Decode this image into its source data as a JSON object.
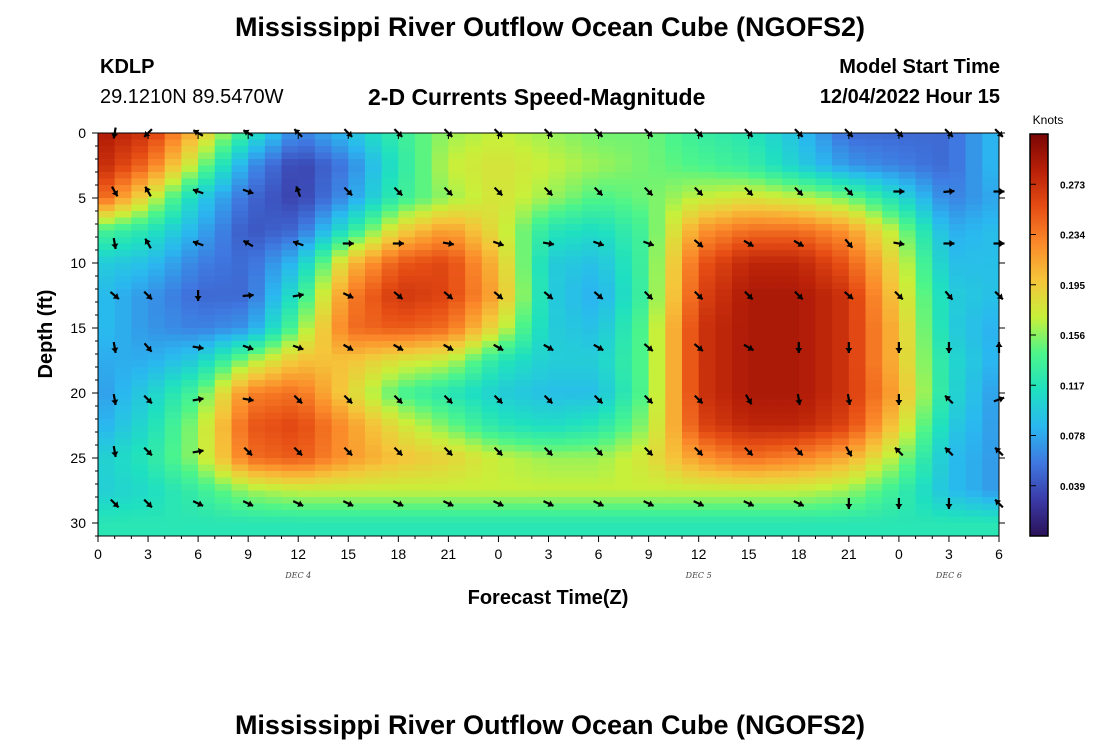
{
  "header": {
    "title": "Mississippi River Outflow Ocean Cube (NGOFS2)",
    "station": "KDLP",
    "coordinates": "29.1210N  89.5470W",
    "subtitle": "2-D Currents Speed-Magnitude",
    "model_start_label": "Model Start Time",
    "model_start_value": "12/04/2022 Hour 15"
  },
  "footer": {
    "title_repeat": "Mississippi River Outflow Ocean Cube (NGOFS2)"
  },
  "chart_data": {
    "type": "heatmap",
    "title": "2-D Currents Speed-Magnitude",
    "xlabel": "Forecast Time(Z)",
    "ylabel": "Depth (ft)",
    "x_ticks": [
      "0",
      "3",
      "6",
      "9",
      "12",
      "15",
      "18",
      "21",
      "0",
      "3",
      "6",
      "9",
      "12",
      "15",
      "18",
      "21",
      "0",
      "3",
      "6"
    ],
    "x_hours_elapsed": [
      0,
      3,
      6,
      9,
      12,
      15,
      18,
      21,
      24,
      27,
      30,
      33,
      36,
      39,
      42,
      45,
      48,
      51,
      54
    ],
    "xlim": [
      0,
      54
    ],
    "day_labels": [
      {
        "label": "DEC 4",
        "hour": 12
      },
      {
        "label": "DEC 5",
        "hour": 36
      },
      {
        "label": "DEC 6",
        "hour": 51
      }
    ],
    "y_ticks": [
      0,
      5,
      10,
      15,
      20,
      25,
      30
    ],
    "ylim": [
      0,
      31
    ],
    "y_inverted": true,
    "colorbar": {
      "unit": "Knots",
      "ticks": [
        0.039,
        0.078,
        0.117,
        0.156,
        0.195,
        0.234,
        0.273
      ],
      "range": [
        0,
        0.312
      ],
      "colors": [
        "#2a1158",
        "#3b3ba8",
        "#3f78e0",
        "#2ab8f0",
        "#1fe0c0",
        "#4df58a",
        "#c8f03a",
        "#f5c53a",
        "#fb8a2a",
        "#e64d14",
        "#b82008",
        "#7a0604"
      ]
    },
    "speed_grid": {
      "depths_ft": [
        0,
        2.5,
        5,
        7.5,
        10,
        12.5,
        15,
        17.5,
        20,
        22.5,
        25,
        27.5,
        30
      ],
      "hours": [
        0,
        3,
        6,
        9,
        12,
        15,
        18,
        21,
        24,
        27,
        30,
        33,
        36,
        39,
        42,
        45,
        48,
        51,
        54
      ],
      "values_knots": [
        [
          0.29,
          0.27,
          0.2,
          0.12,
          0.06,
          0.09,
          0.13,
          0.16,
          0.17,
          0.16,
          0.15,
          0.15,
          0.13,
          0.12,
          0.09,
          0.05,
          0.05,
          0.05,
          0.09
        ],
        [
          0.28,
          0.24,
          0.16,
          0.07,
          0.03,
          0.06,
          0.12,
          0.17,
          0.18,
          0.17,
          0.16,
          0.15,
          0.14,
          0.13,
          0.1,
          0.07,
          0.06,
          0.05,
          0.09
        ],
        [
          0.25,
          0.18,
          0.1,
          0.05,
          0.03,
          0.07,
          0.13,
          0.16,
          0.18,
          0.16,
          0.14,
          0.15,
          0.17,
          0.18,
          0.17,
          0.15,
          0.11,
          0.06,
          0.08
        ],
        [
          0.14,
          0.12,
          0.08,
          0.04,
          0.05,
          0.12,
          0.19,
          0.22,
          0.18,
          0.12,
          0.11,
          0.14,
          0.22,
          0.24,
          0.24,
          0.22,
          0.16,
          0.08,
          0.09
        ],
        [
          0.1,
          0.09,
          0.06,
          0.05,
          0.09,
          0.2,
          0.25,
          0.26,
          0.2,
          0.1,
          0.09,
          0.14,
          0.25,
          0.28,
          0.28,
          0.25,
          0.18,
          0.09,
          0.09
        ],
        [
          0.09,
          0.07,
          0.05,
          0.05,
          0.12,
          0.23,
          0.27,
          0.26,
          0.21,
          0.1,
          0.08,
          0.14,
          0.26,
          0.29,
          0.29,
          0.27,
          0.19,
          0.1,
          0.09
        ],
        [
          0.09,
          0.07,
          0.06,
          0.07,
          0.15,
          0.24,
          0.25,
          0.24,
          0.18,
          0.1,
          0.09,
          0.15,
          0.27,
          0.29,
          0.29,
          0.27,
          0.2,
          0.1,
          0.08
        ],
        [
          0.08,
          0.08,
          0.1,
          0.16,
          0.2,
          0.2,
          0.18,
          0.17,
          0.12,
          0.1,
          0.1,
          0.15,
          0.27,
          0.29,
          0.29,
          0.27,
          0.2,
          0.11,
          0.08
        ],
        [
          0.07,
          0.1,
          0.14,
          0.23,
          0.24,
          0.19,
          0.14,
          0.12,
          0.1,
          0.09,
          0.09,
          0.15,
          0.27,
          0.29,
          0.29,
          0.27,
          0.21,
          0.11,
          0.07
        ],
        [
          0.08,
          0.11,
          0.16,
          0.25,
          0.26,
          0.22,
          0.18,
          0.15,
          0.12,
          0.11,
          0.12,
          0.16,
          0.26,
          0.28,
          0.28,
          0.26,
          0.19,
          0.1,
          0.07
        ],
        [
          0.1,
          0.12,
          0.16,
          0.24,
          0.25,
          0.22,
          0.2,
          0.19,
          0.17,
          0.16,
          0.16,
          0.18,
          0.22,
          0.24,
          0.23,
          0.21,
          0.16,
          0.09,
          0.07
        ],
        [
          0.1,
          0.11,
          0.13,
          0.16,
          0.17,
          0.17,
          0.17,
          0.17,
          0.17,
          0.17,
          0.17,
          0.17,
          0.17,
          0.17,
          0.17,
          0.16,
          0.13,
          0.09,
          0.07
        ],
        [
          0.12,
          0.12,
          0.12,
          0.12,
          0.12,
          0.12,
          0.12,
          0.12,
          0.12,
          0.12,
          0.12,
          0.12,
          0.12,
          0.12,
          0.12,
          0.12,
          0.12,
          0.12,
          0.12
        ]
      ]
    },
    "current_vectors": {
      "hours": [
        1,
        3,
        6,
        9,
        12,
        15,
        18,
        21,
        24,
        27,
        30,
        33,
        36,
        39,
        42,
        45,
        48,
        51,
        54
      ],
      "depths_ft": [
        0,
        4.5,
        8.5,
        12.5,
        16.5,
        20.5,
        24.5,
        28.5
      ],
      "directions_deg_screen": [
        [
          100,
          135,
          210,
          210,
          225,
          45,
          45,
          45,
          45,
          45,
          45,
          45,
          45,
          45,
          45,
          45,
          45,
          45,
          45
        ],
        [
          60,
          240,
          200,
          20,
          250,
          45,
          45,
          45,
          45,
          45,
          45,
          45,
          45,
          45,
          45,
          45,
          0,
          355,
          0
        ],
        [
          80,
          240,
          200,
          210,
          200,
          0,
          0,
          10,
          20,
          10,
          20,
          20,
          40,
          30,
          30,
          50,
          10,
          0,
          0
        ],
        [
          40,
          45,
          90,
          355,
          350,
          25,
          40,
          40,
          40,
          40,
          40,
          45,
          45,
          45,
          45,
          40,
          45,
          50,
          45
        ],
        [
          80,
          50,
          10,
          20,
          20,
          30,
          30,
          30,
          30,
          30,
          30,
          40,
          40,
          30,
          90,
          90,
          90,
          90,
          270
        ],
        [
          80,
          45,
          350,
          10,
          45,
          45,
          45,
          45,
          45,
          45,
          45,
          45,
          45,
          60,
          80,
          80,
          90,
          225,
          340
        ],
        [
          80,
          45,
          350,
          45,
          45,
          45,
          45,
          45,
          45,
          45,
          45,
          45,
          45,
          45,
          45,
          60,
          225,
          225,
          225
        ],
        [
          45,
          45,
          25,
          25,
          25,
          25,
          25,
          25,
          25,
          25,
          25,
          25,
          25,
          25,
          25,
          90,
          90,
          90,
          225
        ]
      ]
    }
  }
}
